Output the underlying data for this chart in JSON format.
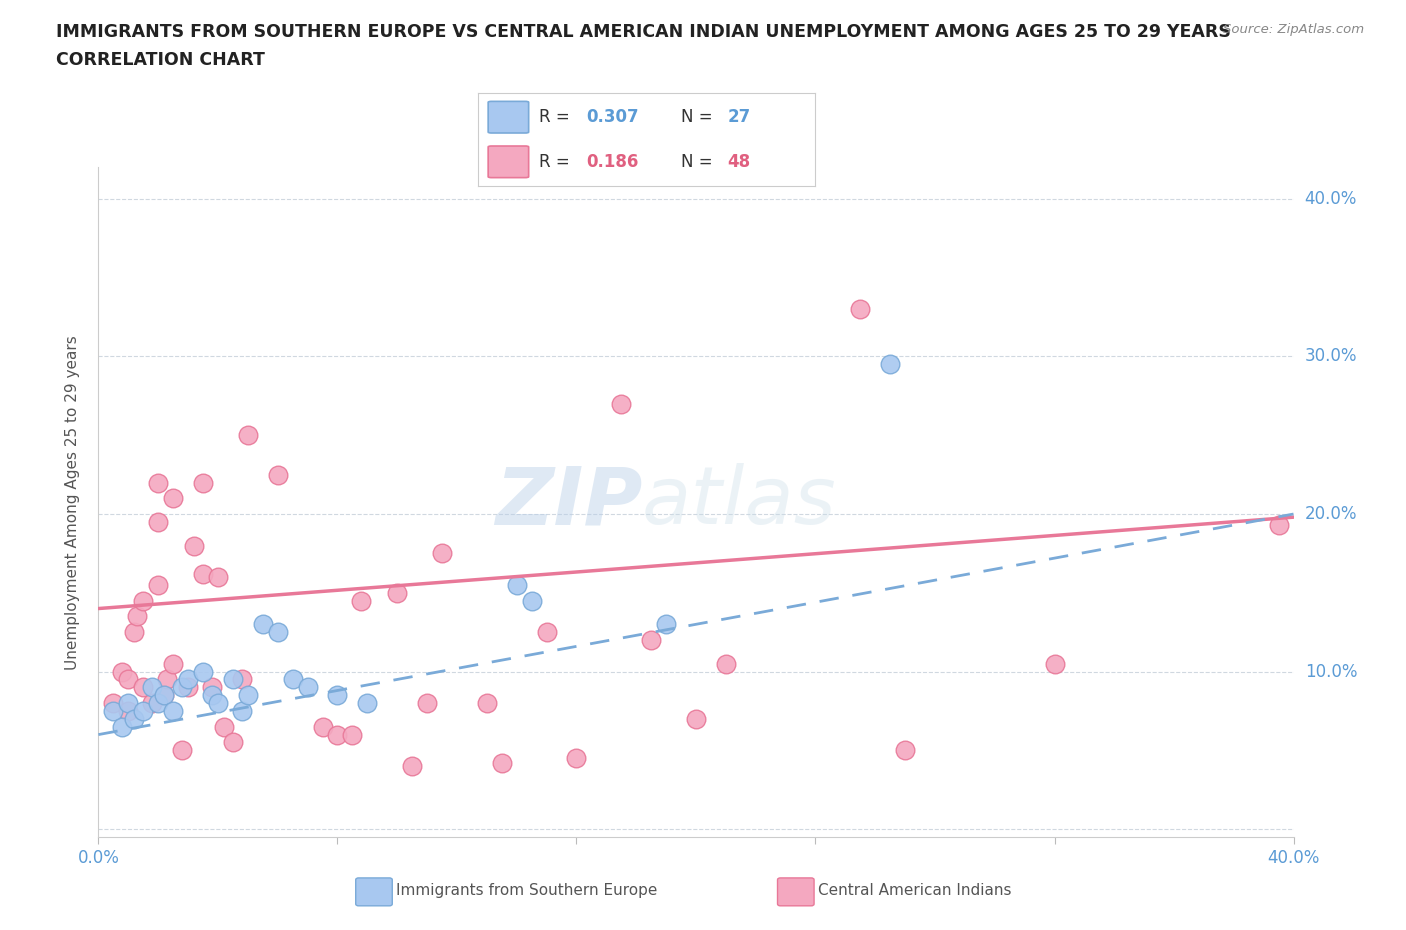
{
  "title_line1": "IMMIGRANTS FROM SOUTHERN EUROPE VS CENTRAL AMERICAN INDIAN UNEMPLOYMENT AMONG AGES 25 TO 29 YEARS",
  "title_line2": "CORRELATION CHART",
  "source": "Source: ZipAtlas.com",
  "ylabel": "Unemployment Among Ages 25 to 29 years",
  "xlim": [
    0.0,
    0.4
  ],
  "ylim": [
    -0.005,
    0.42
  ],
  "yticks": [
    0.0,
    0.1,
    0.2,
    0.3,
    0.4
  ],
  "ytick_labels": [
    "",
    "10.0%",
    "20.0%",
    "30.0%",
    "40.0%"
  ],
  "legend_blue_r": "0.307",
  "legend_blue_n": "27",
  "legend_pink_r": "0.186",
  "legend_pink_n": "48",
  "blue_label": "Immigrants from Southern Europe",
  "pink_label": "Central American Indians",
  "blue_color": "#a8c8f0",
  "pink_color": "#f4a8c0",
  "blue_edge": "#7aaad8",
  "pink_edge": "#e87898",
  "blue_scatter": [
    [
      0.005,
      0.075
    ],
    [
      0.008,
      0.065
    ],
    [
      0.01,
      0.08
    ],
    [
      0.012,
      0.07
    ],
    [
      0.015,
      0.075
    ],
    [
      0.018,
      0.09
    ],
    [
      0.02,
      0.08
    ],
    [
      0.022,
      0.085
    ],
    [
      0.025,
      0.075
    ],
    [
      0.028,
      0.09
    ],
    [
      0.03,
      0.095
    ],
    [
      0.035,
      0.1
    ],
    [
      0.038,
      0.085
    ],
    [
      0.04,
      0.08
    ],
    [
      0.045,
      0.095
    ],
    [
      0.048,
      0.075
    ],
    [
      0.05,
      0.085
    ],
    [
      0.055,
      0.13
    ],
    [
      0.06,
      0.125
    ],
    [
      0.065,
      0.095
    ],
    [
      0.07,
      0.09
    ],
    [
      0.08,
      0.085
    ],
    [
      0.09,
      0.08
    ],
    [
      0.14,
      0.155
    ],
    [
      0.145,
      0.145
    ],
    [
      0.19,
      0.13
    ],
    [
      0.265,
      0.295
    ]
  ],
  "pink_scatter": [
    [
      0.005,
      0.08
    ],
    [
      0.008,
      0.1
    ],
    [
      0.01,
      0.075
    ],
    [
      0.01,
      0.095
    ],
    [
      0.012,
      0.125
    ],
    [
      0.013,
      0.135
    ],
    [
      0.015,
      0.09
    ],
    [
      0.015,
      0.145
    ],
    [
      0.018,
      0.08
    ],
    [
      0.02,
      0.155
    ],
    [
      0.02,
      0.195
    ],
    [
      0.02,
      0.22
    ],
    [
      0.022,
      0.085
    ],
    [
      0.023,
      0.095
    ],
    [
      0.025,
      0.105
    ],
    [
      0.025,
      0.21
    ],
    [
      0.028,
      0.05
    ],
    [
      0.03,
      0.09
    ],
    [
      0.032,
      0.18
    ],
    [
      0.035,
      0.162
    ],
    [
      0.035,
      0.22
    ],
    [
      0.038,
      0.09
    ],
    [
      0.04,
      0.16
    ],
    [
      0.042,
      0.065
    ],
    [
      0.045,
      0.055
    ],
    [
      0.048,
      0.095
    ],
    [
      0.05,
      0.25
    ],
    [
      0.06,
      0.225
    ],
    [
      0.075,
      0.065
    ],
    [
      0.08,
      0.06
    ],
    [
      0.085,
      0.06
    ],
    [
      0.088,
      0.145
    ],
    [
      0.1,
      0.15
    ],
    [
      0.105,
      0.04
    ],
    [
      0.11,
      0.08
    ],
    [
      0.115,
      0.175
    ],
    [
      0.13,
      0.08
    ],
    [
      0.135,
      0.042
    ],
    [
      0.15,
      0.125
    ],
    [
      0.16,
      0.045
    ],
    [
      0.175,
      0.27
    ],
    [
      0.185,
      0.12
    ],
    [
      0.2,
      0.07
    ],
    [
      0.21,
      0.105
    ],
    [
      0.255,
      0.33
    ],
    [
      0.27,
      0.05
    ],
    [
      0.32,
      0.105
    ],
    [
      0.395,
      0.193
    ]
  ],
  "blue_trendline_x": [
    0.0,
    0.4
  ],
  "blue_trendline_y": [
    0.06,
    0.2
  ],
  "pink_trendline_x": [
    0.0,
    0.4
  ],
  "pink_trendline_y": [
    0.14,
    0.198
  ],
  "watermark_zip": "ZIP",
  "watermark_atlas": "atlas",
  "background_color": "#ffffff",
  "grid_color": "#d0d8e0",
  "axis_label_color": "#5b9bd5",
  "text_color": "#444444"
}
